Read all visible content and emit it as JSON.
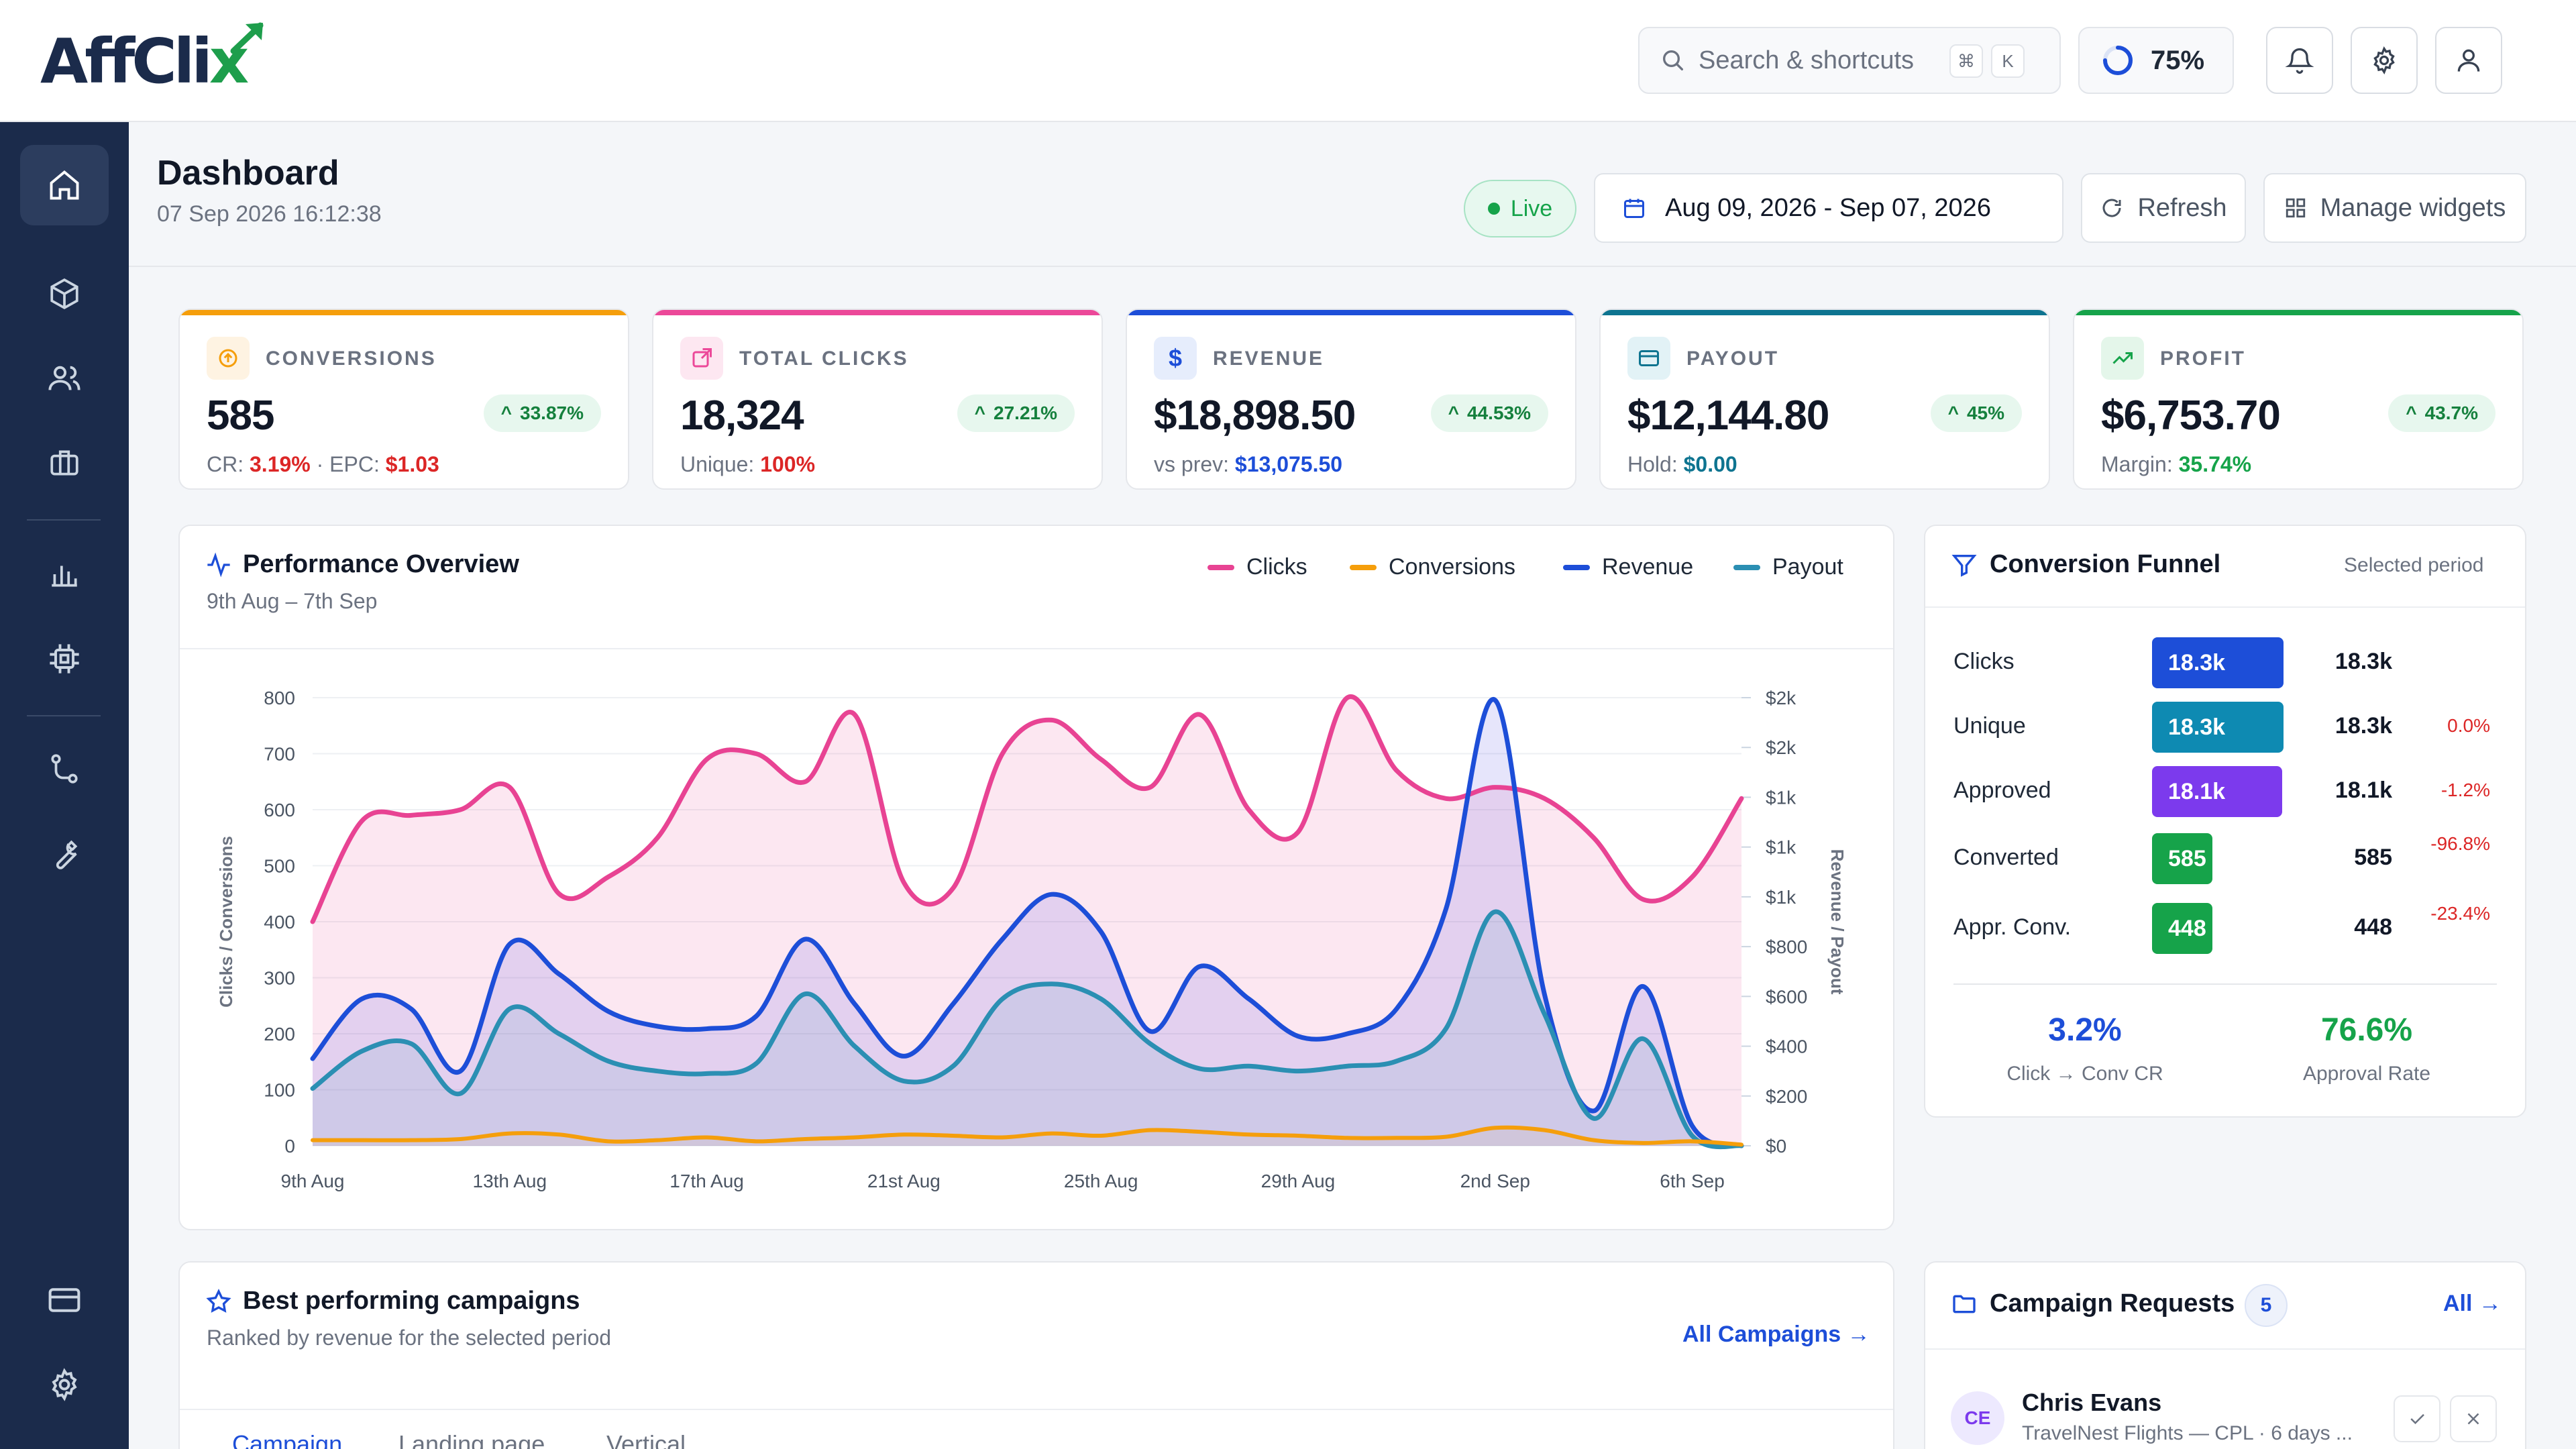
{
  "brand": {
    "name_a": "Aff",
    "name_b": "Cli",
    "name_x": "x"
  },
  "header": {
    "search_placeholder": "Search & shortcuts",
    "kbd_cmd": "⌘",
    "kbd_k": "K",
    "progress": "75%",
    "progress_value": 0.75
  },
  "page": {
    "title": "Dashboard",
    "timestamp": "07 Sep 2026 16:12:38",
    "live": "Live",
    "date_range": "Aug 09, 2026 - Sep 07, 2026",
    "refresh": "Refresh",
    "manage": "Manage widgets"
  },
  "kpis": [
    {
      "label": "CONVERSIONS",
      "value": "585",
      "change": "33.87%",
      "sub_a_label": "CR: ",
      "sub_a": "3.19%",
      "sep": " · ",
      "sub_b_label": "EPC: ",
      "sub_b": "$1.03",
      "color": "#f59e0b"
    },
    {
      "label": "TOTAL CLICKS",
      "value": "18,324",
      "change": "27.21%",
      "sub_a_label": "Unique: ",
      "sub_a": "100%",
      "color": "#ec4899"
    },
    {
      "label": "REVENUE",
      "value": "$18,898.50",
      "change": "44.53%",
      "sub_a_label": "vs prev: ",
      "sub_a": "$13,075.50",
      "color": "#1d4ed8"
    },
    {
      "label": "PAYOUT",
      "value": "$12,144.80",
      "change": "45%",
      "sub_a_label": "Hold: ",
      "sub_a": "$0.00",
      "color": "#0e7490"
    },
    {
      "label": "PROFIT",
      "value": "$6,753.70",
      "change": "43.7%",
      "sub_a_label": "Margin: ",
      "sub_a": "35.74%",
      "color": "#16a34a"
    }
  ],
  "performance": {
    "title": "Performance Overview",
    "subtitle": "9th Aug – 7th Sep",
    "legend": [
      "Clicks",
      "Conversions",
      "Revenue",
      "Payout"
    ]
  },
  "chart_data": {
    "type": "area",
    "xlabel": "",
    "ylabel": "Clicks / Conversions",
    "y2label": "Revenue / Payout",
    "ylim": [
      0,
      800
    ],
    "y_ticks": [
      "0",
      "100",
      "200",
      "300",
      "400",
      "500",
      "600",
      "700",
      "800"
    ],
    "y2_ticks": [
      "$0",
      "$200",
      "$400",
      "$600",
      "$800",
      "$1k",
      "$1k",
      "$1k",
      "$2k",
      "$2k"
    ],
    "x_tick_labels": [
      "9th Aug",
      "13th Aug",
      "17th Aug",
      "21st Aug",
      "25th Aug",
      "29th Aug",
      "2nd Sep",
      "6th Sep"
    ],
    "x": [
      "9 Aug",
      "10 Aug",
      "11 Aug",
      "12 Aug",
      "13 Aug",
      "14 Aug",
      "15 Aug",
      "16 Aug",
      "17 Aug",
      "18 Aug",
      "19 Aug",
      "20 Aug",
      "21 Aug",
      "22 Aug",
      "23 Aug",
      "24 Aug",
      "25 Aug",
      "26 Aug",
      "27 Aug",
      "28 Aug",
      "29 Aug",
      "30 Aug",
      "31 Aug",
      "1 Sep",
      "2 Sep",
      "3 Sep",
      "4 Sep",
      "5 Sep",
      "6 Sep",
      "7 Sep"
    ],
    "grid": true,
    "legend": "top-right",
    "series": [
      {
        "name": "Clicks",
        "color": "#e84393",
        "axis": "left",
        "values": [
          400,
          580,
          590,
          600,
          640,
          450,
          480,
          550,
          690,
          700,
          650,
          770,
          470,
          460,
          700,
          760,
          690,
          640,
          770,
          600,
          560,
          800,
          670,
          620,
          640,
          620,
          550,
          440,
          480,
          620
        ]
      },
      {
        "name": "Conversions",
        "color": "#f59e0b",
        "axis": "left",
        "values": [
          10,
          10,
          10,
          12,
          22,
          20,
          8,
          10,
          15,
          8,
          12,
          15,
          20,
          18,
          15,
          22,
          18,
          28,
          25,
          20,
          18,
          14,
          14,
          16,
          32,
          28,
          10,
          5,
          8,
          2
        ]
      },
      {
        "name": "Revenue",
        "color": "#1d4ed8",
        "axis": "right",
        "values": [
          350,
          590,
          550,
          300,
          810,
          690,
          540,
          480,
          470,
          520,
          830,
          570,
          360,
          570,
          830,
          1010,
          860,
          460,
          720,
          590,
          440,
          450,
          550,
          950,
          1790,
          610,
          140,
          640,
          80,
          0
        ]
      },
      {
        "name": "Payout",
        "color": "#2b8fb3",
        "axis": "right",
        "values": [
          230,
          380,
          410,
          210,
          550,
          450,
          340,
          300,
          290,
          330,
          610,
          400,
          260,
          320,
          590,
          650,
          590,
          410,
          310,
          320,
          300,
          320,
          340,
          470,
          940,
          530,
          110,
          430,
          40,
          0
        ]
      }
    ]
  },
  "funnel": {
    "title": "Conversion Funnel",
    "subtitle": "Selected period",
    "rows": [
      {
        "label": "Clicks",
        "bar": "18.3k",
        "value": "18.3k",
        "pct": "",
        "color": "#1d4ed8",
        "fraction": 1.0
      },
      {
        "label": "Unique",
        "bar": "18.3k",
        "value": "18.3k",
        "pct": "0.0%",
        "color": "#0e8ab2",
        "fraction": 1.0
      },
      {
        "label": "Approved",
        "bar": "18.1k",
        "value": "18.1k",
        "pct": "-1.2%",
        "color": "#7c3aed",
        "fraction": 0.99
      },
      {
        "label": "Converted",
        "bar": "585",
        "value": "585",
        "pct": "-96.8%",
        "color": "#16a34a",
        "fraction": 0.032
      },
      {
        "label": "Appr. Conv.",
        "bar": "448",
        "value": "448",
        "pct": "-23.4%",
        "color": "#16a34a",
        "fraction": 0.024
      }
    ],
    "stat1_value": "3.2%",
    "stat1_label": "Click → Conv CR",
    "stat2_value": "76.6%",
    "stat2_label": "Approval Rate"
  },
  "campaigns": {
    "title": "Best performing campaigns",
    "subtitle": "Ranked by revenue for the selected period",
    "link": "All Campaigns →",
    "tabs": [
      "Campaign",
      "Landing page",
      "Vertical"
    ]
  },
  "requests": {
    "title": "Campaign Requests",
    "count": "5",
    "link": "All →",
    "item": {
      "initials": "CE",
      "name": "Chris Evans",
      "detail": "TravelNest Flights — CPL · 6 days ..."
    }
  }
}
